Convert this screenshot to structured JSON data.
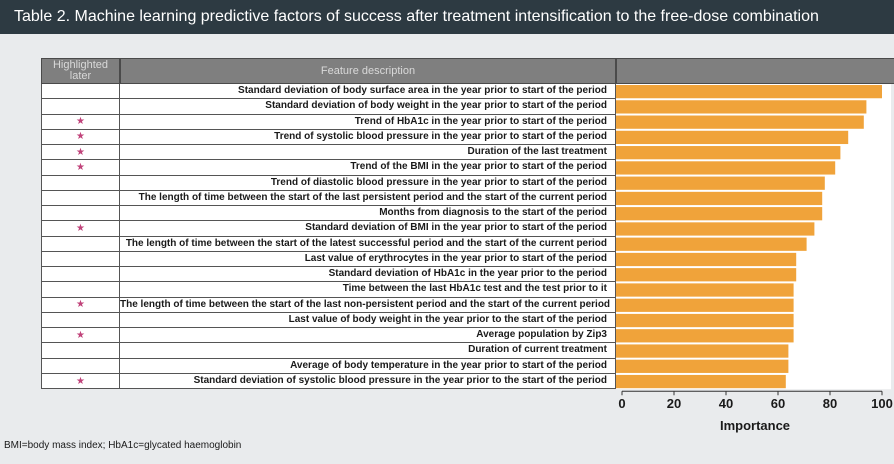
{
  "title": "Table 2. Machine learning predictive factors of success after treatment intensification to the free-dose combination",
  "header": {
    "col1": "Highlighted later",
    "col2": "Feature description"
  },
  "footnote": "BMI=body mass index; HbA1c=glycated haemoglobin",
  "colors": {
    "bar": "#f0a33a",
    "star": "#c0437a"
  },
  "chart_data": {
    "type": "bar",
    "orientation": "horizontal",
    "xlabel": "Importance",
    "xlim": [
      0,
      100
    ],
    "xticks": [
      "0",
      "20",
      "40",
      "60",
      "80",
      "100"
    ],
    "categories": [
      "Standard deviation of body surface area in the year prior to start of the period",
      "Standard deviation of body weight in the year prior to start of the period",
      "Trend of HbA1c in the year prior to start of the period",
      "Trend of systolic blood pressure in the year prior to start of the period",
      "Duration of the last treatment",
      "Trend of the BMI in the year prior to start of the period",
      "Trend of diastolic blood pressure in the year prior to start of the period",
      "The length of time between the start of the last persistent period and the start of the current period",
      "Months from diagnosis to the start of the period",
      "Standard deviation of BMI in the year prior to start of the period",
      "The length of time between the start of the latest successful period and the start of the current period",
      "Last value of erythrocytes in the year prior to start of the period",
      "Standard deviation of HbA1c in the year prior to the period",
      "Time between the last HbA1c test and the test prior to it",
      "The length of time between the start of the last non-persistent period and the start of the current period",
      "Last value of body weight in the year prior to the start of the period",
      "Average population by Zip3",
      "Duration of current treatment",
      "Average of body temperature in the year prior to start of the period",
      "Standard deviation of systolic blood pressure in the year prior to the start of the period"
    ],
    "values": [
      100,
      94,
      93,
      87,
      84,
      82,
      78,
      77,
      77,
      74,
      71,
      67,
      67,
      66,
      66,
      66,
      66,
      64,
      64,
      63
    ],
    "highlighted": [
      false,
      false,
      true,
      true,
      true,
      true,
      false,
      false,
      false,
      true,
      false,
      false,
      false,
      false,
      true,
      false,
      true,
      false,
      false,
      true
    ],
    "star_symbol": "★"
  }
}
